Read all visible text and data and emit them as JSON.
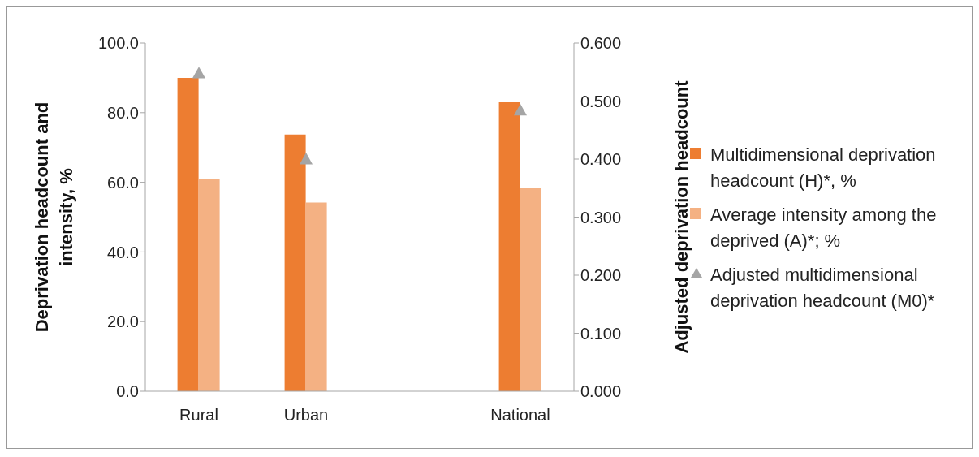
{
  "chart_data": {
    "type": "bar",
    "categories": [
      "Rural",
      "Urban",
      null,
      "National"
    ],
    "series": [
      {
        "name": "Multidimensional deprivation headcount (H)*, %",
        "color": "#ed7d31",
        "values": [
          90.0,
          73.7,
          null,
          83.0
        ]
      },
      {
        "name": "Average intensity among the deprived (A)*; %",
        "color": "#f4b183",
        "values": [
          61.0,
          54.2,
          null,
          58.5
        ]
      },
      {
        "name": "Adjusted multidimensional deprivation headcount (M0)*",
        "type": "scatter",
        "axis": "y2",
        "marker": "triangle",
        "color": "#a5a5a5",
        "values": [
          0.548,
          0.4,
          null,
          0.484
        ]
      }
    ],
    "ylabel": "Deprivation headcount and intensity, %",
    "y2label": "Adjusted deprivation headcount",
    "ylim": [
      0,
      100
    ],
    "yticks": [
      {
        "value": 0,
        "label": "0.0"
      },
      {
        "value": 20,
        "label": "20.0"
      },
      {
        "value": 40,
        "label": "40.0"
      },
      {
        "value": 60,
        "label": "60.0"
      },
      {
        "value": 80,
        "label": "80.0"
      },
      {
        "value": 100,
        "label": "100.0"
      }
    ],
    "y2lim": [
      0,
      0.6
    ],
    "y2ticks": [
      {
        "value": 0,
        "label": "0.000"
      },
      {
        "value": 0.1,
        "label": "0.100"
      },
      {
        "value": 0.2,
        "label": "0.200"
      },
      {
        "value": 0.3,
        "label": "0.300"
      },
      {
        "value": 0.4,
        "label": "0.400"
      },
      {
        "value": 0.5,
        "label": "0.500"
      },
      {
        "value": 0.6,
        "label": "0.600"
      }
    ],
    "grid": false,
    "legend": "right"
  }
}
